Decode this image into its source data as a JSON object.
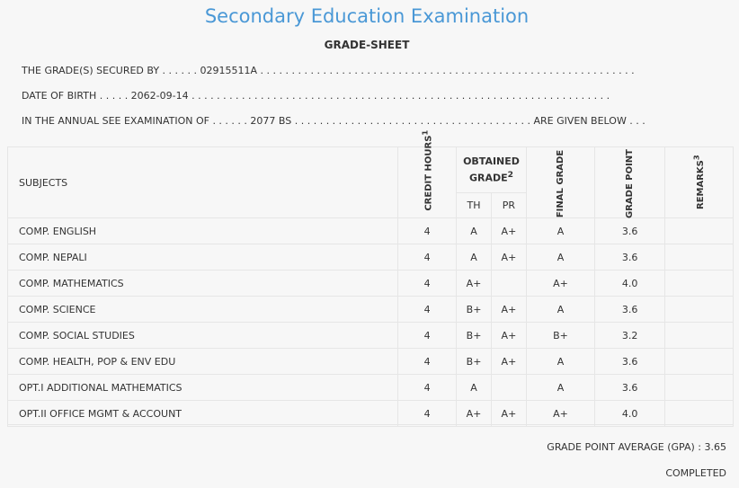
{
  "title": "Secondary Education Examination",
  "subtitle": "GRADE-SHEET",
  "info": {
    "secured_by": "THE GRADE(S) SECURED BY . . . . . . 02915511A . . . . . . . . . . . . . . . . . . . . . . . . . . . . . . . . . . . . . . . . . . . . . . . . . . . . . . . . . . . .",
    "dob": "DATE OF BIRTH . . . . . 2062-09-14 . . . . . . . . . . . . . . . . . . . . . . . . . . . . . . . . . . . . . . . . . . . . . . . . . . . . . . . . . . . . . . . . . . .",
    "exam": "IN THE ANNUAL SEE EXAMINATION OF . . . . . . 2077 BS . . . . . . . . . . . . . . . . . . . . . . . . . . . . . . . . . . . . . . ARE GIVEN BELOW . . ."
  },
  "headers": {
    "subjects": "SUBJECTS",
    "credit_hours": "CREDIT HOURS",
    "credit_sup": "1",
    "obtained_grade": "OBTAINED GRADE",
    "obtained_sup": "2",
    "th": "TH",
    "pr": "PR",
    "final_grade": "FINAL GRADE",
    "grade_point": "GRADE POINT",
    "remarks": "REMARKS",
    "remarks_sup": "3"
  },
  "rows": [
    {
      "subject": "COMP. ENGLISH",
      "credit": "4",
      "th": "A",
      "pr": "A+",
      "final": "A",
      "gp": "3.6",
      "remarks": ""
    },
    {
      "subject": "COMP. NEPALI",
      "credit": "4",
      "th": "A",
      "pr": "A+",
      "final": "A",
      "gp": "3.6",
      "remarks": ""
    },
    {
      "subject": "COMP. MATHEMATICS",
      "credit": "4",
      "th": "A+",
      "pr": "",
      "final": "A+",
      "gp": "4.0",
      "remarks": ""
    },
    {
      "subject": "COMP. SCIENCE",
      "credit": "4",
      "th": "B+",
      "pr": "A+",
      "final": "A",
      "gp": "3.6",
      "remarks": ""
    },
    {
      "subject": "COMP. SOCIAL STUDIES",
      "credit": "4",
      "th": "B+",
      "pr": "A+",
      "final": "B+",
      "gp": "3.2",
      "remarks": ""
    },
    {
      "subject": "COMP. HEALTH, POP & ENV EDU",
      "credit": "4",
      "th": "B+",
      "pr": "A+",
      "final": "A",
      "gp": "3.6",
      "remarks": ""
    },
    {
      "subject": "OPT.I ADDITIONAL MATHEMATICS",
      "credit": "4",
      "th": "A",
      "pr": "",
      "final": "A",
      "gp": "3.6",
      "remarks": ""
    },
    {
      "subject": "OPT.II OFFICE MGMT & ACCOUNT",
      "credit": "4",
      "th": "A+",
      "pr": "A+",
      "final": "A+",
      "gp": "4.0",
      "remarks": ""
    }
  ],
  "gpa": "GRADE POINT AVERAGE (GPA) : 3.65",
  "status": "COMPLETED",
  "colors": {
    "title": "#4a98d6",
    "background": "#f7f7f7",
    "border": "#e6e6e6"
  }
}
